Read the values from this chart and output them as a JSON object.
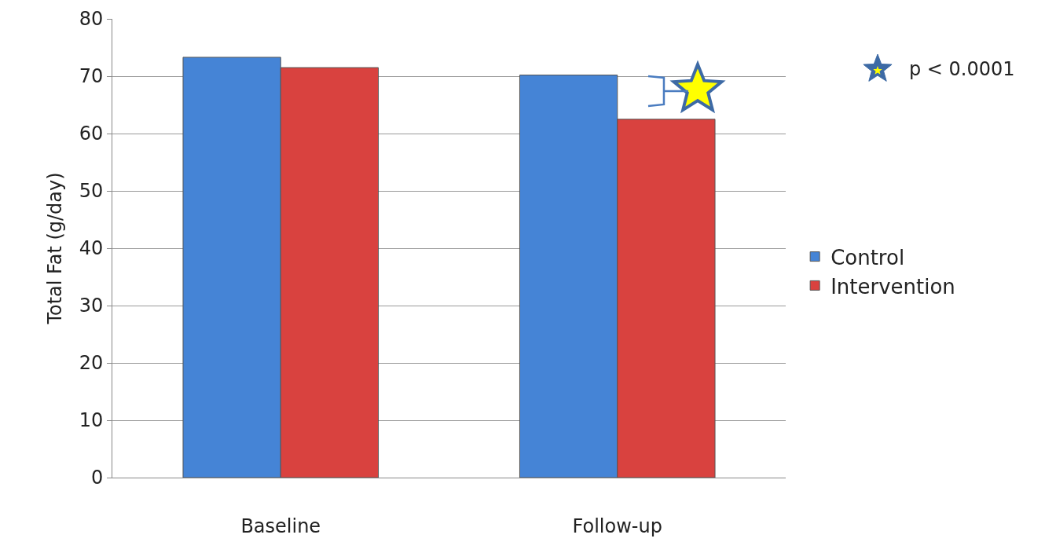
{
  "chart_data": {
    "type": "bar",
    "ylabel": "Total Fat (g/day)",
    "categories": [
      "Baseline",
      "Follow-up"
    ],
    "series": [
      {
        "name": "Control",
        "color": "#4584d6",
        "values": [
          73.3,
          70.2
        ]
      },
      {
        "name": "Intervention",
        "color": "#d9423f",
        "values": [
          71.5,
          62.5
        ]
      }
    ],
    "ylim": [
      0,
      80
    ],
    "yticks": [
      0,
      10,
      20,
      30,
      40,
      50,
      60,
      70,
      80
    ],
    "grid": "y",
    "legend": "right",
    "annotations": [
      "p < 0.0001"
    ]
  }
}
